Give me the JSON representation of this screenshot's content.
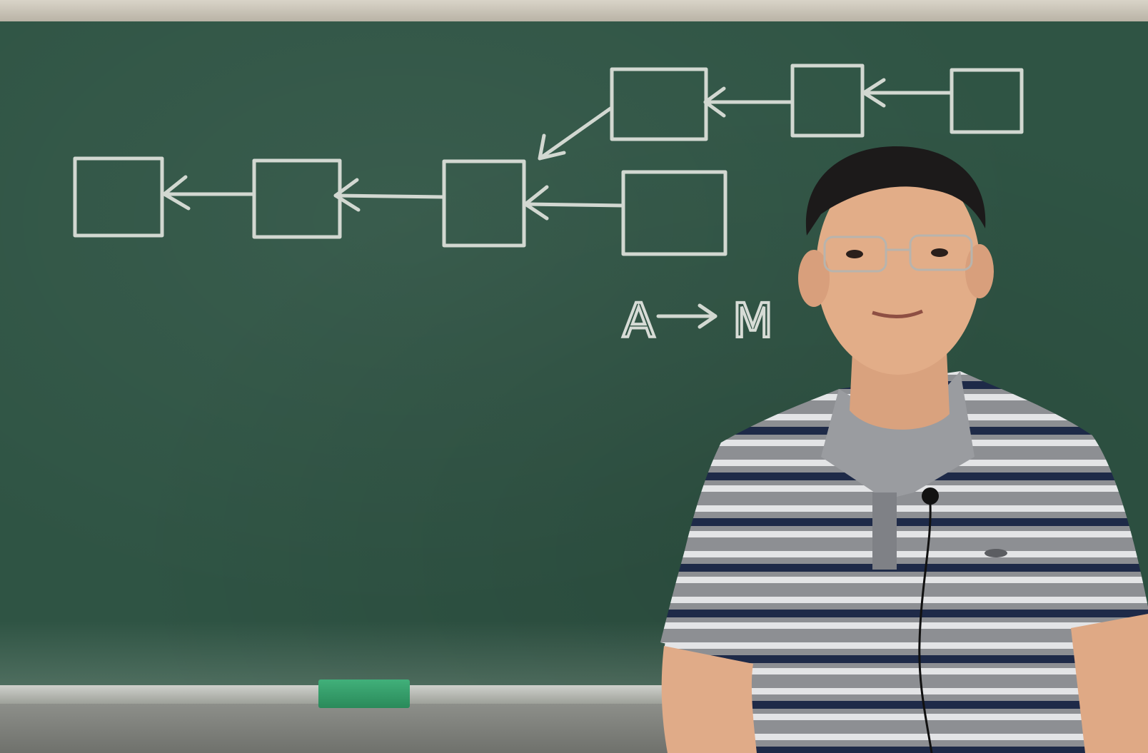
{
  "scene": {
    "description_free": true,
    "board_color": "#2f5444",
    "chalk_color": "#d7dcd6",
    "shirt_stripe_dark": "#1e2a48",
    "shirt_base": "#8d8f93"
  },
  "board_notes": {
    "formula_left": "A",
    "formula_right": "M"
  }
}
